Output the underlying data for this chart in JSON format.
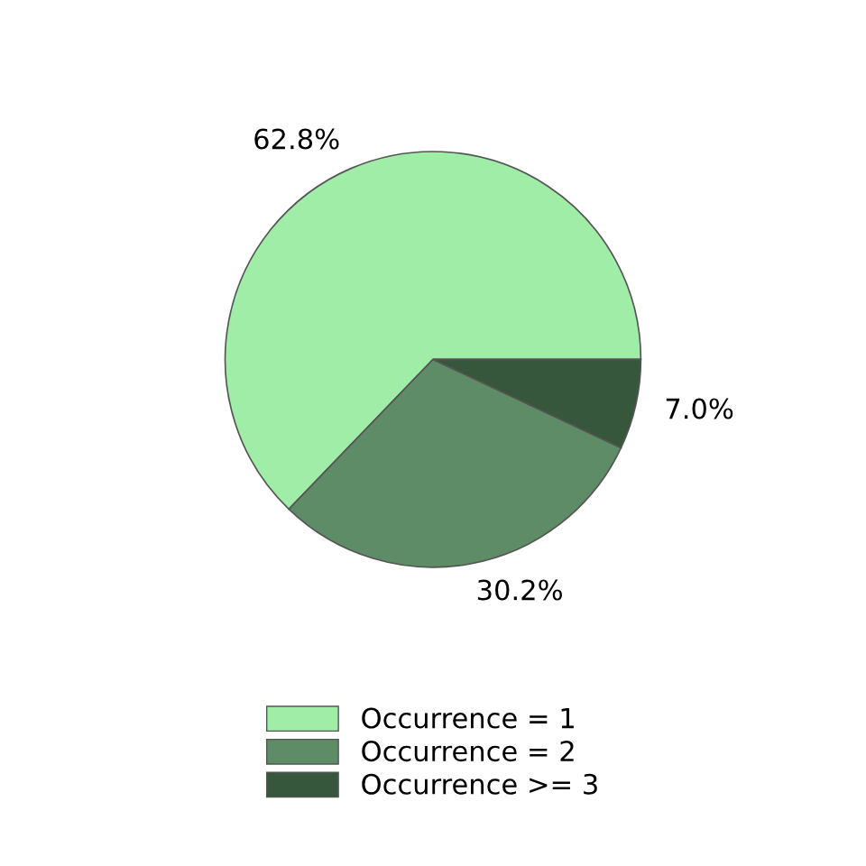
{
  "chart_data": {
    "type": "pie",
    "categories": [
      "Occurrence = 1",
      "Occurrence = 2",
      "Occurrence >= 3"
    ],
    "values": [
      62.8,
      30.2,
      7.0
    ],
    "value_labels": [
      "62.8%",
      "30.2%",
      "7.0%"
    ],
    "colors": [
      "#a0eda8",
      "#5e8c66",
      "#36573c"
    ],
    "legend": "bottom"
  }
}
